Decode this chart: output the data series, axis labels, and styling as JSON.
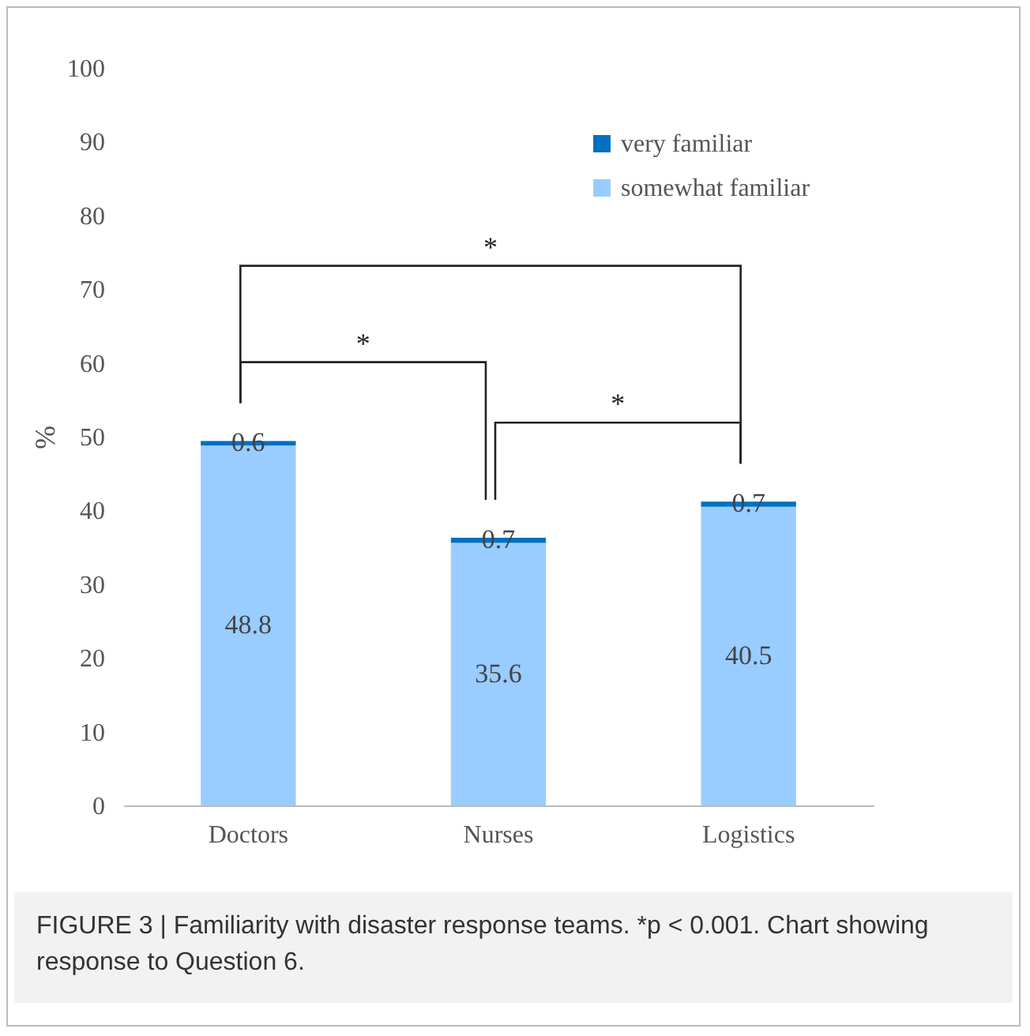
{
  "chart_data": {
    "type": "bar",
    "stacked": true,
    "ylabel": "%",
    "categories": [
      "Doctors",
      "Nurses",
      "Logistics"
    ],
    "series": [
      {
        "name": "somewhat familiar",
        "color": "#99ccff",
        "values": [
          48.8,
          35.6,
          40.5
        ]
      },
      {
        "name": "very familiar",
        "color": "#0070c0",
        "values": [
          0.6,
          0.7,
          0.7
        ]
      }
    ],
    "ylim": [
      0,
      100
    ],
    "yticks": [
      0,
      10,
      20,
      30,
      40,
      50,
      60,
      70,
      80,
      90,
      100
    ],
    "grid": false,
    "legend": "top right",
    "data_labels": true,
    "annotations": [
      "*",
      "*",
      "*",
      "FIGURE 3 | Familiarity with disaster response teams. *p < 0.001. Chart showing response to Question 6."
    ]
  }
}
